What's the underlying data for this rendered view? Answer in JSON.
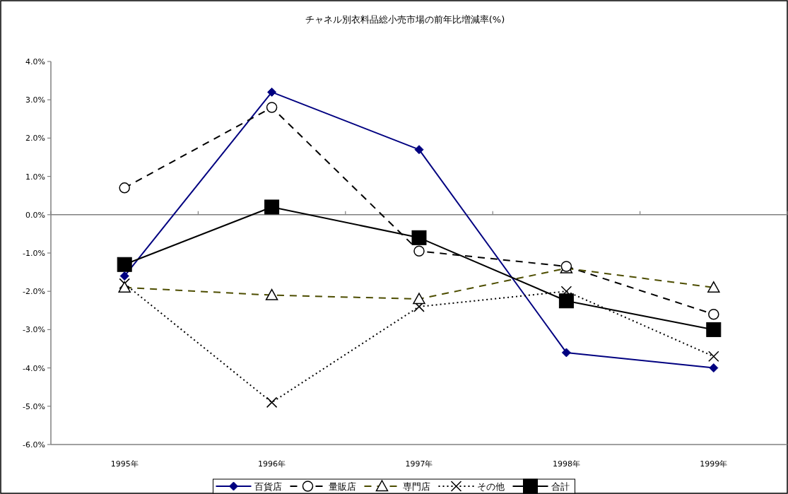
{
  "chart_data": {
    "type": "line",
    "title": "チャネル別衣料品総小売市場の前年比増減率(%)",
    "categories": [
      "1995年",
      "1996年",
      "1997年",
      "1998年",
      "1999年"
    ],
    "series": [
      {
        "name": "百貨店",
        "color": "#000080",
        "marker": "diamond",
        "line_style": "solid",
        "values": [
          -1.6,
          3.2,
          1.7,
          -3.6,
          -4.0
        ]
      },
      {
        "name": "量販店",
        "color": "#000000",
        "marker": "circle",
        "line_style": "dashed",
        "values": [
          0.7,
          2.8,
          -0.95,
          -1.35,
          -2.6
        ]
      },
      {
        "name": "専門店",
        "color": "#4d4d00",
        "marker": "triangle",
        "line_style": "dashed",
        "values": [
          -1.9,
          -2.1,
          -2.2,
          -1.4,
          -1.9
        ]
      },
      {
        "name": "その他",
        "color": "#000000",
        "marker": "cross",
        "line_style": "dotted",
        "values": [
          -1.8,
          -4.9,
          -2.4,
          -2.0,
          -3.7
        ]
      },
      {
        "name": "合計",
        "color": "#000000",
        "marker": "square",
        "line_style": "solid",
        "values": [
          -1.3,
          0.2,
          -0.6,
          -2.25,
          -3.0
        ]
      }
    ],
    "ylim": [
      -6,
      4
    ],
    "yticks": [
      {
        "value": -6,
        "label": "-6.0%"
      },
      {
        "value": -5,
        "label": "-5.0%"
      },
      {
        "value": -4,
        "label": "-4.0%"
      },
      {
        "value": -3,
        "label": "-3.0%"
      },
      {
        "value": -2,
        "label": "-2.0%"
      },
      {
        "value": -1,
        "label": "-1.0%"
      },
      {
        "value": 0,
        "label": "0.0%"
      },
      {
        "value": 1,
        "label": "1.0%"
      },
      {
        "value": 2,
        "label": "2.0%"
      },
      {
        "value": 3,
        "label": "3.0%"
      },
      {
        "value": 4,
        "label": "4.0%"
      }
    ],
    "legend": "bottom"
  }
}
